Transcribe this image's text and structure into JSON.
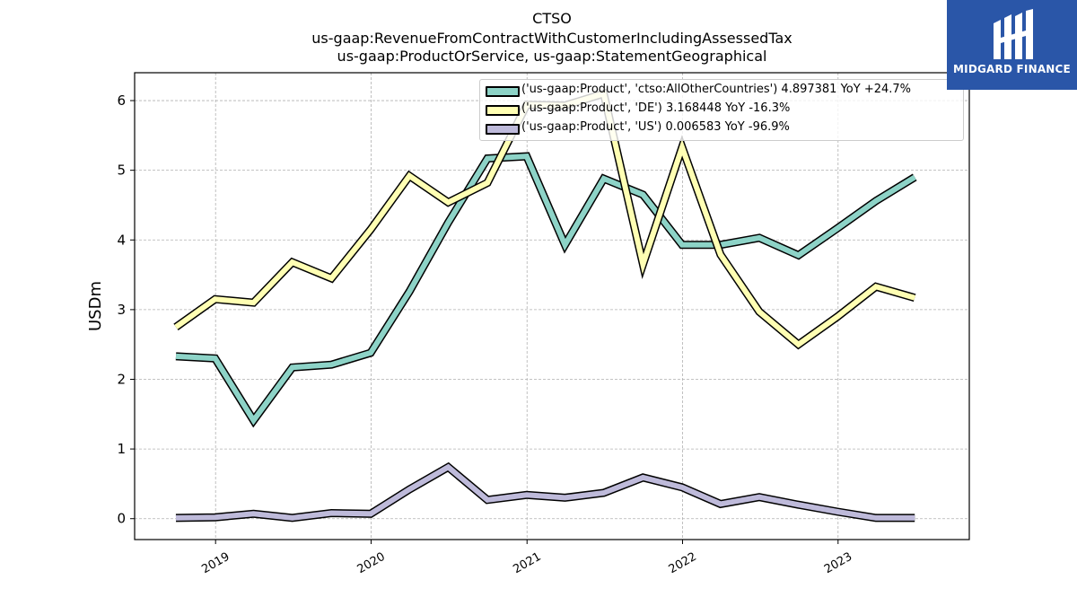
{
  "header": {
    "title": "CTSO",
    "subtitle_1": "us-gaap:RevenueFromContractWithCustomerIncludingAssessedTax",
    "subtitle_2": "us-gaap:ProductOrService, us-gaap:StatementGeographical"
  },
  "logo": {
    "text": "MIDGARD FINANCE",
    "background": "#2a56a8"
  },
  "chart_data": {
    "type": "line",
    "ylabel": "USDm",
    "xlabel": "",
    "ylim": [
      -0.3,
      6.4
    ],
    "y_ticks": [
      0,
      1,
      2,
      3,
      4,
      5,
      6
    ],
    "x_ticks": [
      "2019",
      "2020",
      "2021",
      "2022",
      "2023"
    ],
    "grid": true,
    "legend_position": "top-right",
    "series": [
      {
        "name": "('us-gaap:Product', 'ctso:AllOtherCountries') 4.897381 YoY +24.7%",
        "color": "#8dd3c7",
        "points": [
          [
            "2018-09-30",
            2.33
          ],
          [
            "2018-12-31",
            2.3
          ],
          [
            "2019-03-31",
            1.41
          ],
          [
            "2019-06-30",
            2.17
          ],
          [
            "2019-09-30",
            2.21
          ],
          [
            "2019-12-31",
            2.38
          ],
          [
            "2020-03-31",
            3.26
          ],
          [
            "2020-06-30",
            4.25
          ],
          [
            "2020-09-30",
            5.17
          ],
          [
            "2020-12-31",
            5.2
          ],
          [
            "2021-03-31",
            3.93
          ],
          [
            "2021-06-30",
            4.88
          ],
          [
            "2021-09-30",
            4.65
          ],
          [
            "2021-12-31",
            3.93
          ],
          [
            "2022-03-31",
            3.93
          ],
          [
            "2022-06-30",
            4.03
          ],
          [
            "2022-09-30",
            3.78
          ],
          [
            "2022-12-31",
            4.17
          ],
          [
            "2023-03-31",
            4.56
          ],
          [
            "2023-06-30",
            4.9
          ]
        ]
      },
      {
        "name": "('us-gaap:Product', 'DE') 3.168448 YoY -16.3%",
        "color": "#ffffb3",
        "points": [
          [
            "2018-09-30",
            2.75
          ],
          [
            "2018-12-31",
            3.15
          ],
          [
            "2019-03-31",
            3.1
          ],
          [
            "2019-06-30",
            3.68
          ],
          [
            "2019-09-30",
            3.45
          ],
          [
            "2019-12-31",
            4.15
          ],
          [
            "2020-03-31",
            4.92
          ],
          [
            "2020-06-30",
            4.54
          ],
          [
            "2020-09-30",
            4.82
          ],
          [
            "2020-12-31",
            5.94
          ],
          [
            "2021-03-31",
            5.93
          ],
          [
            "2021-06-30",
            6.1
          ],
          [
            "2021-09-30",
            3.65
          ],
          [
            "2021-12-31",
            5.33
          ],
          [
            "2022-03-31",
            3.79
          ],
          [
            "2022-06-30",
            2.97
          ],
          [
            "2022-09-30",
            2.5
          ],
          [
            "2022-12-31",
            2.9
          ],
          [
            "2023-03-31",
            3.33
          ],
          [
            "2023-06-30",
            3.17
          ]
        ]
      },
      {
        "name": "('us-gaap:Product', 'US') 0.006583 YoY -96.9%",
        "color": "#bebada",
        "points": [
          [
            "2018-09-30",
            0.01
          ],
          [
            "2018-12-31",
            0.02
          ],
          [
            "2019-03-31",
            0.07
          ],
          [
            "2019-06-30",
            0.01
          ],
          [
            "2019-09-30",
            0.08
          ],
          [
            "2019-12-31",
            0.07
          ],
          [
            "2020-03-31",
            0.42
          ],
          [
            "2020-06-30",
            0.74
          ],
          [
            "2020-09-30",
            0.27
          ],
          [
            "2020-12-31",
            0.34
          ],
          [
            "2021-03-31",
            0.3
          ],
          [
            "2021-06-30",
            0.37
          ],
          [
            "2021-09-30",
            0.59
          ],
          [
            "2021-12-31",
            0.45
          ],
          [
            "2022-03-31",
            0.21
          ],
          [
            "2022-06-30",
            0.31
          ],
          [
            "2022-09-30",
            0.2
          ],
          [
            "2022-12-31",
            0.1
          ],
          [
            "2023-03-31",
            0.01
          ],
          [
            "2023-06-30",
            0.01
          ]
        ]
      }
    ]
  }
}
